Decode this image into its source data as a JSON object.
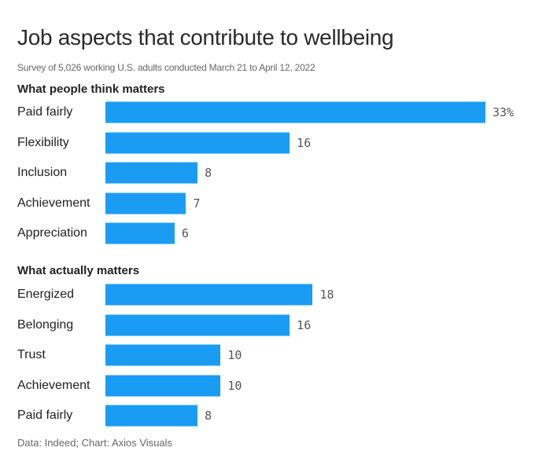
{
  "chart_data": {
    "type": "bar",
    "orientation": "horizontal",
    "title": "Job aspects that contribute to wellbeing",
    "subtitle": "Survey of 5,026 working U.S. adults conducted March 21 to April 12, 2022",
    "value_suffix_first": "%",
    "xlim": [
      0,
      33
    ],
    "color": "#1a9cf5",
    "groups": [
      {
        "name": "What people think matters",
        "categories": [
          "Paid fairly",
          "Flexibility",
          "Inclusion",
          "Achievement",
          "Appreciation"
        ],
        "values": [
          33,
          16,
          8,
          7,
          6
        ],
        "labels": [
          "33%",
          "16",
          "8",
          "7",
          "6"
        ]
      },
      {
        "name": "What actually matters",
        "categories": [
          "Energized",
          "Belonging",
          "Trust",
          "Achievement",
          "Paid fairly"
        ],
        "values": [
          18,
          16,
          10,
          10,
          8
        ],
        "labels": [
          "18",
          "16",
          "10",
          "10",
          "8"
        ]
      }
    ],
    "source": "Data: Indeed; Chart: Axios Visuals"
  }
}
